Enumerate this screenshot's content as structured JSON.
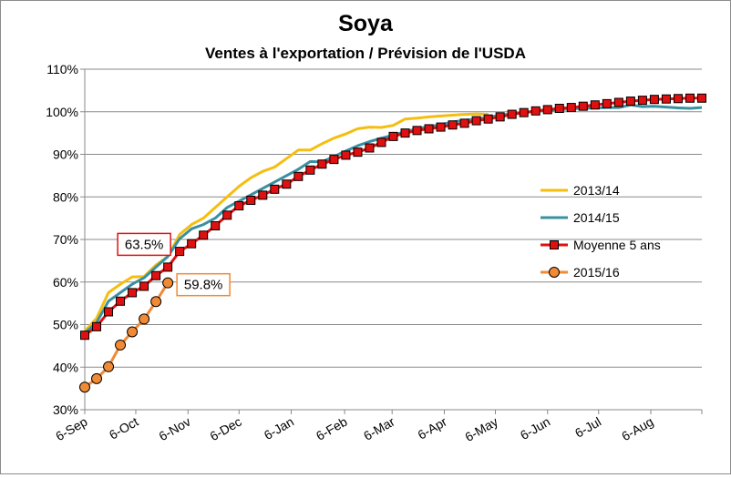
{
  "chart_data": {
    "type": "line",
    "title": "Soya",
    "subtitle": "Ventes à l'exportation / Prévision de l'USDA",
    "xlabel": "",
    "ylabel": "",
    "y_tick_labels": [
      "30%",
      "40%",
      "50%",
      "60%",
      "70%",
      "80%",
      "90%",
      "100%",
      "110%"
    ],
    "y_ticks": [
      30,
      40,
      50,
      60,
      70,
      80,
      90,
      100,
      110
    ],
    "ylim": [
      30,
      110
    ],
    "xlim": [
      0,
      52
    ],
    "x_tick_labels": [
      "6-Sep",
      "6-Oct",
      "6-Nov",
      "6-Dec",
      "6-Jan",
      "6-Feb",
      "6-Mar",
      "6-Apr",
      "6-May",
      "6-Jun",
      "6-Jul",
      "6-Aug"
    ],
    "x_ticks": [
      0,
      4.3,
      8.7,
      13,
      17.4,
      21.9,
      25.9,
      30.3,
      34.6,
      39,
      43.3,
      47.7
    ],
    "grid": "horizontal",
    "legend_position": "right",
    "series": [
      {
        "name": "2013/14",
        "color": "#f5be0f",
        "marker": "none",
        "x": [
          0,
          1,
          2,
          3,
          4,
          5,
          6,
          7,
          8,
          9,
          10,
          11,
          12,
          13,
          14,
          15,
          16,
          17,
          18,
          19,
          20,
          21,
          22,
          23,
          24,
          25,
          26,
          27,
          28,
          29,
          30,
          31,
          32,
          33,
          34
        ],
        "values": [
          48.5,
          51.5,
          57.5,
          59.5,
          61.2,
          61.3,
          64,
          66,
          71.2,
          73.5,
          75,
          77.5,
          80,
          82.5,
          84.5,
          86,
          87,
          89,
          91,
          91,
          92.5,
          93.8,
          94.8,
          96,
          96.4,
          96.3,
          96.8,
          98.3,
          98.5,
          98.8,
          99,
          99.2,
          99.4,
          99.5,
          99.4
        ]
      },
      {
        "name": "2014/15",
        "color": "#3990a0",
        "marker": "none",
        "x": [
          0,
          1,
          2,
          3,
          4,
          5,
          6,
          7,
          8,
          9,
          10,
          11,
          12,
          13,
          14,
          15,
          16,
          17,
          18,
          19,
          20,
          21,
          22,
          23,
          24,
          25,
          26,
          27,
          28,
          29,
          30,
          31,
          32,
          33,
          34,
          35,
          36,
          37,
          38,
          39,
          40,
          41,
          42,
          43,
          44,
          45,
          46,
          47,
          48,
          49,
          50,
          51,
          52
        ],
        "values": [
          48,
          50.5,
          55.5,
          57.5,
          59.5,
          61,
          63.5,
          66,
          70.2,
          72.5,
          73.5,
          75,
          77.5,
          79,
          80.5,
          82,
          83.5,
          85,
          86.5,
          88.3,
          88.2,
          89.5,
          90.8,
          92,
          93,
          93.8,
          94.5,
          95.3,
          96,
          96.5,
          97,
          97.6,
          98,
          98.3,
          98.7,
          99.2,
          99.5,
          99.8,
          100.1,
          100.3,
          100.5,
          100.7,
          100.8,
          100.9,
          101,
          101,
          101.6,
          101.2,
          101.3,
          101.1,
          100.9,
          100.8,
          101
        ]
      },
      {
        "name": "Moyenne 5 ans",
        "color": "#e01010",
        "marker": "square",
        "x": [
          0,
          1,
          2,
          3,
          4,
          5,
          6,
          7,
          8,
          9,
          10,
          11,
          12,
          13,
          14,
          15,
          16,
          17,
          18,
          19,
          20,
          21,
          22,
          23,
          24,
          25,
          26,
          27,
          28,
          29,
          30,
          31,
          32,
          33,
          34,
          35,
          36,
          37,
          38,
          39,
          40,
          41,
          42,
          43,
          44,
          45,
          46,
          47,
          48,
          49,
          50,
          51,
          52
        ],
        "values": [
          47.5,
          49.5,
          53,
          55.5,
          57.5,
          59,
          61.5,
          63.5,
          67.2,
          69,
          71,
          73.2,
          75.7,
          77.9,
          79.2,
          80.4,
          81.8,
          83,
          84.8,
          86.3,
          87.7,
          88.8,
          89.8,
          90.5,
          91.5,
          92.8,
          94.2,
          95,
          95.6,
          96,
          96.4,
          96.9,
          97.3,
          97.9,
          98.3,
          98.8,
          99.4,
          99.8,
          100.2,
          100.5,
          100.8,
          101,
          101.3,
          101.6,
          101.9,
          102.2,
          102.5,
          102.7,
          102.9,
          103,
          103.1,
          103.2,
          103.2
        ]
      },
      {
        "name": "2015/16",
        "color": "#f08a35",
        "marker": "circle",
        "x": [
          0,
          1,
          2,
          3,
          4,
          5,
          6,
          7
        ],
        "values": [
          35.3,
          37.3,
          40.1,
          45.2,
          48.3,
          51.3,
          55.4,
          59.8
        ]
      }
    ],
    "annotations": [
      {
        "text": "63.5%",
        "series": "Moyenne 5 ans",
        "x": 7,
        "value": 63.5,
        "color": "#e01010",
        "side": "left"
      },
      {
        "text": "59.8%",
        "series": "2015/16",
        "x": 7,
        "value": 59.8,
        "color": "#f08a35",
        "side": "right"
      }
    ]
  }
}
